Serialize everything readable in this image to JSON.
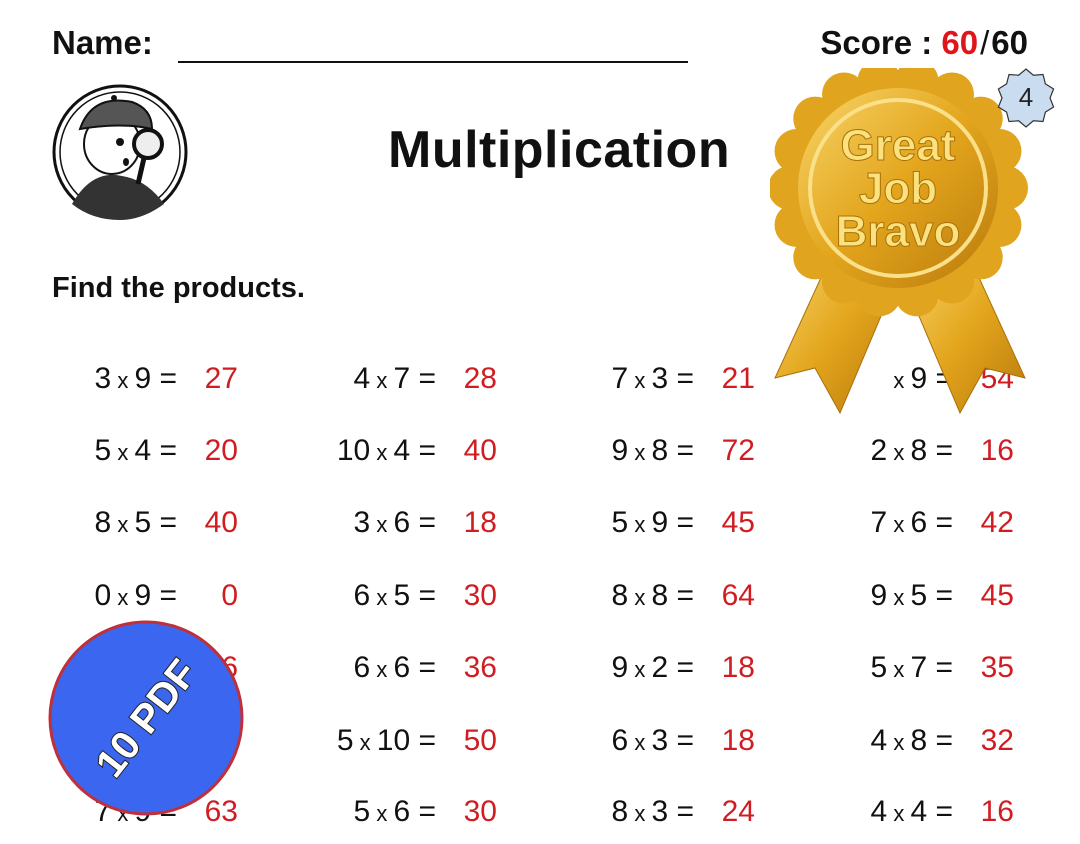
{
  "header": {
    "name_label": "Name:",
    "score_label": "Score :",
    "score_obtained": "60",
    "score_separator": "/",
    "score_total": "60",
    "page_number": "4"
  },
  "title": "Multiplication",
  "instruction": "Find the products.",
  "stickers": {
    "award_text": [
      "Great",
      "Job",
      "Bravo"
    ],
    "pdf_text": "10 PDF"
  },
  "colors": {
    "answer": "#d01d22",
    "score": "#e0141b",
    "pdf_badge": "#3a66f0",
    "gold": "#e6a91a",
    "page_badge": "#c9dcf0"
  },
  "problems": [
    [
      {
        "a": "3",
        "b": "9",
        "ans": "27"
      },
      {
        "a": "4",
        "b": "7",
        "ans": "28"
      },
      {
        "a": "7",
        "b": "3",
        "ans": "21"
      },
      {
        "a": "",
        "b": "9",
        "ans": "54"
      }
    ],
    [
      {
        "a": "5",
        "b": "4",
        "ans": "20"
      },
      {
        "a": "10",
        "b": "4",
        "ans": "40"
      },
      {
        "a": "9",
        "b": "8",
        "ans": "72"
      },
      {
        "a": "2",
        "b": "8",
        "ans": "16"
      }
    ],
    [
      {
        "a": "8",
        "b": "5",
        "ans": "40"
      },
      {
        "a": "3",
        "b": "6",
        "ans": "18"
      },
      {
        "a": "5",
        "b": "9",
        "ans": "45"
      },
      {
        "a": "7",
        "b": "6",
        "ans": "42"
      }
    ],
    [
      {
        "a": "0",
        "b": "9",
        "ans": "0"
      },
      {
        "a": "6",
        "b": "5",
        "ans": "30"
      },
      {
        "a": "8",
        "b": "8",
        "ans": "64"
      },
      {
        "a": "9",
        "b": "5",
        "ans": "45"
      }
    ],
    [
      {
        "a": "",
        "b": "",
        "ans": "6"
      },
      {
        "a": "6",
        "b": "6",
        "ans": "36"
      },
      {
        "a": "9",
        "b": "2",
        "ans": "18"
      },
      {
        "a": "5",
        "b": "7",
        "ans": "35"
      }
    ],
    [
      {
        "a": "",
        "b": "",
        "ans": ""
      },
      {
        "a": "5",
        "b": "10",
        "ans": "50"
      },
      {
        "a": "6",
        "b": "3",
        "ans": "18"
      },
      {
        "a": "4",
        "b": "8",
        "ans": "32"
      }
    ],
    [
      {
        "a": "7",
        "b": "9",
        "ans": "63"
      },
      {
        "a": "5",
        "b": "6",
        "ans": "30"
      },
      {
        "a": "8",
        "b": "3",
        "ans": "24"
      },
      {
        "a": "4",
        "b": "4",
        "ans": "16"
      }
    ]
  ]
}
